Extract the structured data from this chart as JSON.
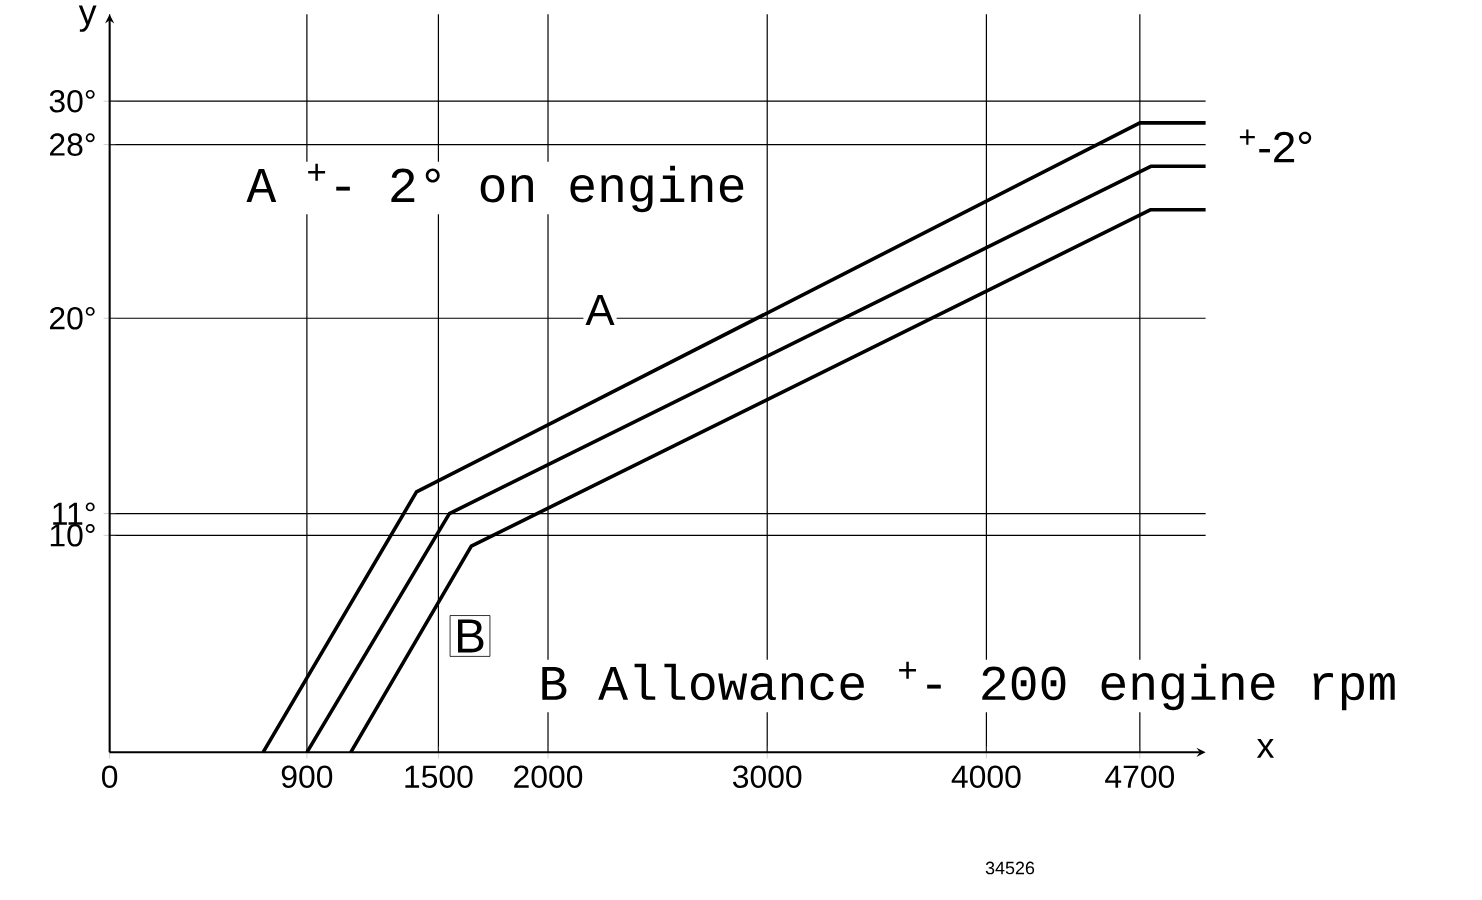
{
  "chart_data": {
    "type": "line",
    "xlabel": "x",
    "ylabel": "y",
    "xlim": [
      0,
      5000
    ],
    "ylim": [
      0,
      34
    ],
    "xticks": [
      0,
      900,
      1500,
      2000,
      3000,
      4000,
      4700
    ],
    "yticks": [
      {
        "value": 10,
        "label": "10°"
      },
      {
        "value": 11,
        "label": "11°"
      },
      {
        "value": 20,
        "label": "20°"
      },
      {
        "value": 28,
        "label": "28°"
      },
      {
        "value": 30,
        "label": "30°"
      }
    ],
    "grid": true,
    "marker": "none",
    "line_style": "solid",
    "series": [
      {
        "color": "#000000",
        "x": [
          700,
          1400,
          4700,
          5000
        ],
        "values": [
          0,
          12,
          29,
          29
        ]
      },
      {
        "color": "#000000",
        "x": [
          900,
          1550,
          4750,
          5000
        ],
        "values": [
          0,
          11,
          27,
          27
        ]
      },
      {
        "color": "#000000",
        "x": [
          1100,
          1650,
          4750,
          5000
        ],
        "values": [
          0,
          9.5,
          25,
          25
        ]
      }
    ],
    "annotations": [
      "A $^{+}$- 2° on engine",
      "A",
      "$^{+}$-2°",
      "B",
      "B Allowance $^{+}$- 200 engine rpm",
      "34526"
    ]
  }
}
